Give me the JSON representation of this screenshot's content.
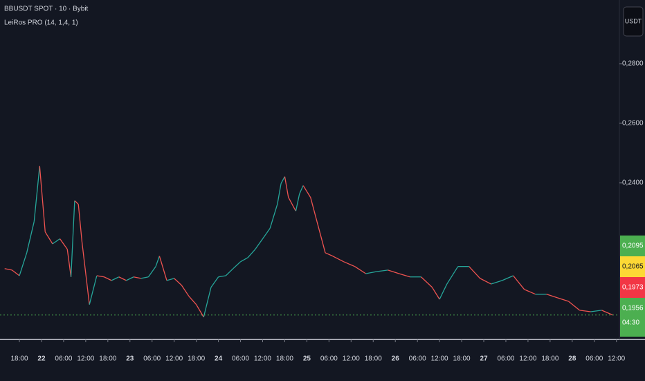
{
  "header": {
    "symbol": "BBUSDT SPOT · 10 · Bybit",
    "indicator": "LeiRos PRO (14, 1,4, 1)",
    "currency_button": "USDT"
  },
  "chart_data": {
    "type": "line",
    "up_color": "#26a69a",
    "down_color": "#ef5350",
    "x": [
      -4,
      -2,
      0,
      2,
      4,
      5.5,
      7,
      9,
      11,
      13,
      14,
      15,
      16,
      17,
      19,
      21,
      23,
      25,
      27,
      29,
      31,
      33,
      35,
      37,
      38,
      40,
      42,
      44,
      46,
      48,
      50,
      52,
      54,
      56,
      58,
      60,
      62,
      64,
      66,
      68,
      70,
      71,
      72,
      73,
      75,
      76,
      77,
      79,
      81,
      83,
      85,
      88,
      91,
      94,
      97,
      100,
      103,
      106,
      109,
      112,
      114,
      116,
      119,
      122,
      125,
      128,
      131,
      134,
      137,
      140,
      143,
      146,
      149,
      152,
      155,
      158,
      161
    ],
    "values": [
      0.2112,
      0.2107,
      0.2088,
      0.2165,
      0.227,
      0.2456,
      0.2235,
      0.2195,
      0.2212,
      0.2177,
      0.2084,
      0.234,
      0.2328,
      0.22,
      0.1991,
      0.2088,
      0.2084,
      0.2072,
      0.2084,
      0.2072,
      0.2084,
      0.2079,
      0.2084,
      0.2119,
      0.2154,
      0.2072,
      0.2079,
      0.2056,
      0.2019,
      0.1991,
      0.1949,
      0.2049,
      0.2084,
      0.2088,
      0.2112,
      0.2135,
      0.2149,
      0.2177,
      0.2212,
      0.2247,
      0.2328,
      0.2398,
      0.2421,
      0.2351,
      0.2305,
      0.2363,
      0.2391,
      0.2351,
      0.2258,
      0.2165,
      0.2154,
      0.2135,
      0.2119,
      0.2095,
      0.2102,
      0.2107,
      0.2095,
      0.2084,
      0.2084,
      0.2049,
      0.2009,
      0.206,
      0.2119,
      0.2119,
      0.2079,
      0.206,
      0.2072,
      0.2088,
      0.2042,
      0.2026,
      0.2026,
      0.2014,
      0.2002,
      0.1972,
      0.1967,
      0.1972,
      0.1956
    ],
    "xlim": [
      -5.26,
      162.8
    ],
    "ylim": [
      0.1874,
      0.3014
    ],
    "xticks": [
      {
        "value": 0,
        "label": "18:00"
      },
      {
        "value": 6,
        "label": "22"
      },
      {
        "value": 12,
        "label": "06:00"
      },
      {
        "value": 18,
        "label": "12:00"
      },
      {
        "value": 24,
        "label": "18:00"
      },
      {
        "value": 30,
        "label": "23"
      },
      {
        "value": 36,
        "label": "06:00"
      },
      {
        "value": 42,
        "label": "12:00"
      },
      {
        "value": 48,
        "label": "18:00"
      },
      {
        "value": 54,
        "label": "24"
      },
      {
        "value": 60,
        "label": "06:00"
      },
      {
        "value": 66,
        "label": "12:00"
      },
      {
        "value": 72,
        "label": "18:00"
      },
      {
        "value": 78,
        "label": "25"
      },
      {
        "value": 84,
        "label": "06:00"
      },
      {
        "value": 90,
        "label": "12:00"
      },
      {
        "value": 96,
        "label": "18:00"
      },
      {
        "value": 102,
        "label": "26"
      },
      {
        "value": 108,
        "label": "06:00"
      },
      {
        "value": 114,
        "label": "12:00"
      },
      {
        "value": 120,
        "label": "18:00"
      },
      {
        "value": 126,
        "label": "27"
      },
      {
        "value": 132,
        "label": "06:00"
      },
      {
        "value": 138,
        "label": "12:00"
      },
      {
        "value": 144,
        "label": "18:00"
      },
      {
        "value": 150,
        "label": "28"
      },
      {
        "value": 156,
        "label": "06:00"
      },
      {
        "value": 162,
        "label": "12:00"
      }
    ],
    "yticks": [
      {
        "value": 0.28,
        "label": "0,2800"
      },
      {
        "value": 0.26,
        "label": "0,2600"
      },
      {
        "value": 0.24,
        "label": "0,2400"
      }
    ],
    "price_tags": [
      {
        "value": 0.2095,
        "label": "0,2095",
        "color": "#4caf50"
      },
      {
        "value": 0.2065,
        "label": "0,2065",
        "color": "#fdd835"
      },
      {
        "value": 0.1973,
        "label": "0,1973",
        "color": "#f23645"
      },
      {
        "value": 0.1956,
        "label": "0,1956",
        "color": "#4caf50",
        "countdown": "04:30"
      }
    ]
  }
}
